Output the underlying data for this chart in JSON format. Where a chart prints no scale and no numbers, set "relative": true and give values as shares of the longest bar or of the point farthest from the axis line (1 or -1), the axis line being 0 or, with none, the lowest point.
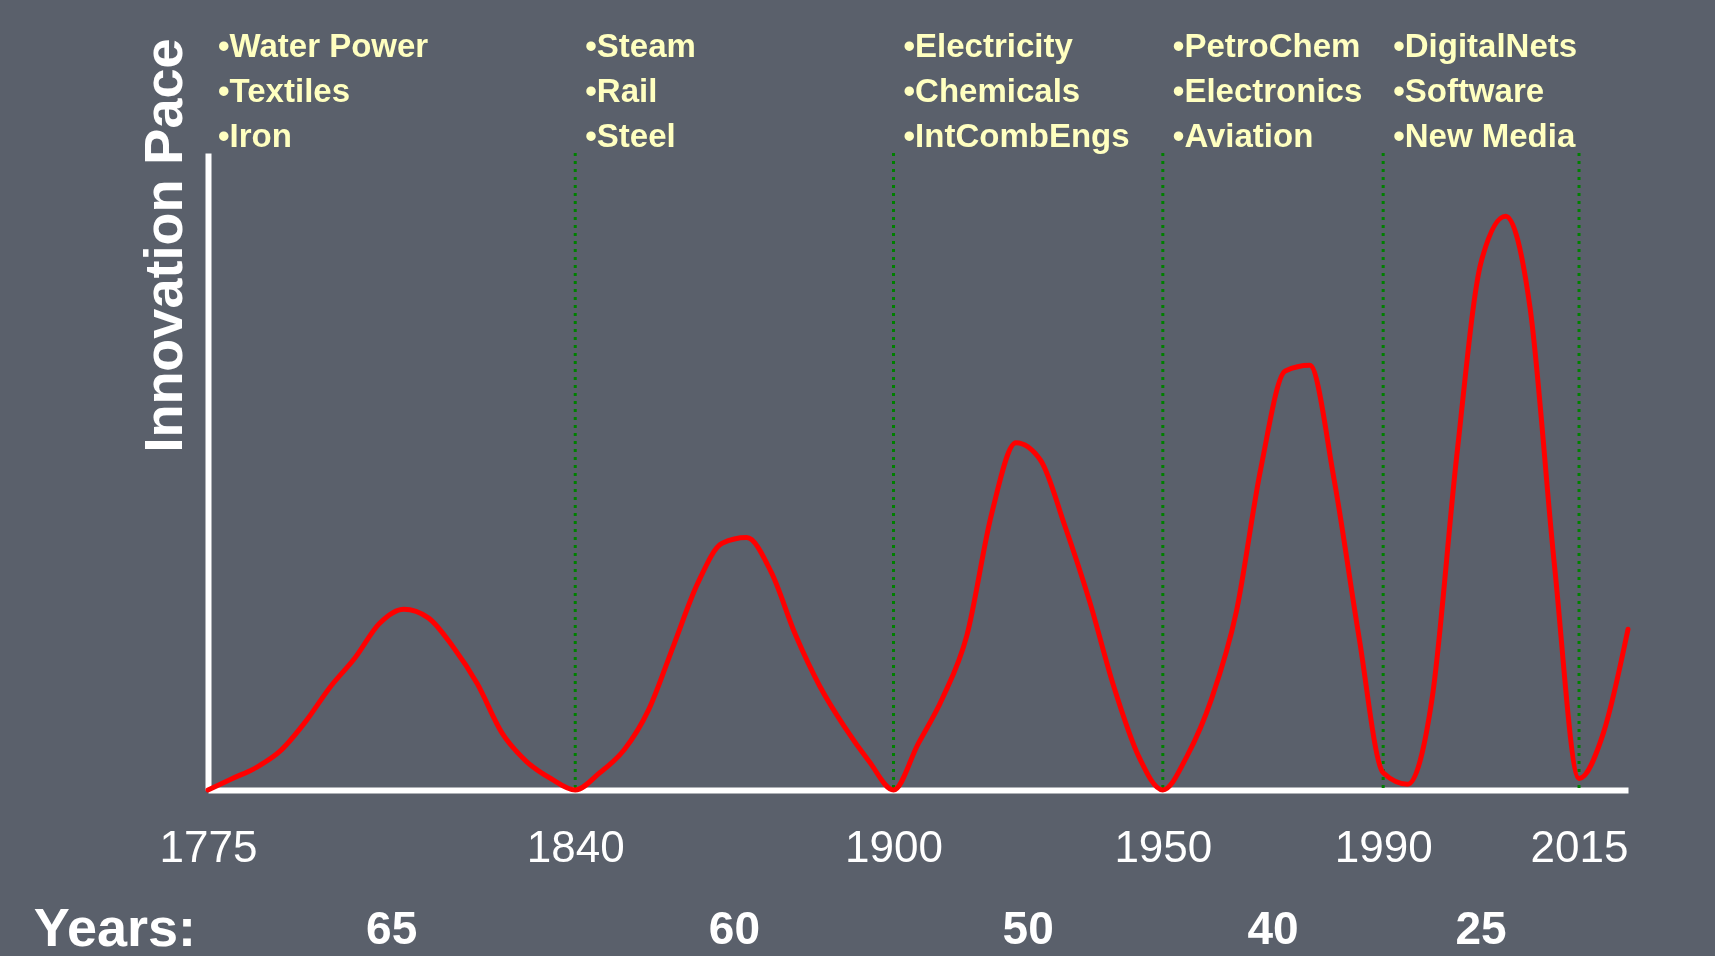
{
  "chart_data": {
    "type": "line",
    "ylabel": "Innovation Pace",
    "relative": true,
    "categories": [
      "1775",
      null,
      null,
      null,
      null,
      null,
      null,
      null,
      null,
      null,
      null,
      null,
      null,
      null,
      null,
      "1840",
      null,
      null,
      null,
      null,
      null,
      null,
      null,
      null,
      null,
      null,
      null,
      null,
      "1900",
      null,
      null,
      null,
      null,
      null,
      null,
      null,
      null,
      null,
      null,
      "1950",
      null,
      null,
      null,
      null,
      null,
      null,
      null,
      null,
      "1990",
      null,
      null,
      null,
      null,
      null,
      null,
      null,
      "2015",
      null,
      null
    ],
    "series": [
      {
        "color": "#ff0000",
        "values": [
          0,
          0.02,
          0.04,
          0.07,
          0.12,
          0.18,
          0.23,
          0.29,
          0.315,
          0.3,
          0.25,
          0.185,
          0.1,
          0.05,
          0.02,
          0,
          0.03,
          0.07,
          0.14,
          0.25,
          0.36,
          0.43,
          0.44,
          0.38,
          0.27,
          0.18,
          0.11,
          0.05,
          0,
          0.08,
          0.16,
          0.27,
          0.48,
          0.605,
          0.575,
          0.46,
          0.33,
          0.18,
          0.06,
          0,
          0.06,
          0.16,
          0.31,
          0.56,
          0.73,
          0.74,
          0.54,
          0.27,
          0.03,
          0.01,
          0.16,
          0.58,
          0.92,
          1,
          0.84,
          0.39,
          0.02,
          0.1,
          0.28
        ]
      }
    ],
    "ref_lines": [
      {
        "axis": "x",
        "value": "1840",
        "color": "#008000",
        "line_style": "dotted"
      },
      {
        "axis": "x",
        "value": "1900",
        "color": "#008000",
        "line_style": "dotted"
      },
      {
        "axis": "x",
        "value": "1950",
        "color": "#008000",
        "line_style": "dotted"
      },
      {
        "axis": "x",
        "value": "1990",
        "color": "#008000",
        "line_style": "dotted"
      },
      {
        "axis": "x",
        "value": "2015",
        "color": "#008000",
        "line_style": "dotted"
      }
    ],
    "annotations": [
      "•Water Power\n•Textiles\n•Iron",
      "•Steam\n•Rail\n•Steel",
      "•Electricity\n•Chemicals\n•IntCombEngs",
      "•PetroChem\n•Electronics\n•Aviation",
      "•DigitalNets\n•Software\n•New Media",
      "Years:",
      "65",
      "60",
      "50",
      "40",
      "25"
    ]
  }
}
